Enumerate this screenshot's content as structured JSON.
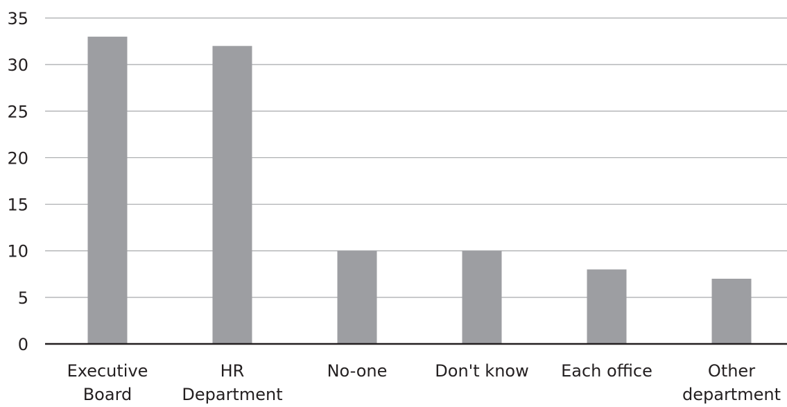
{
  "chart_data": {
    "type": "bar",
    "categories": [
      [
        "Executive",
        "Board"
      ],
      [
        "HR",
        "Department"
      ],
      [
        "No-one"
      ],
      [
        "Don't know"
      ],
      [
        "Each office"
      ],
      [
        "Other",
        "department"
      ]
    ],
    "values": [
      33,
      32,
      10,
      10,
      8,
      7
    ],
    "ylim": [
      0,
      35
    ],
    "yticks": [
      0,
      5,
      10,
      15,
      20,
      25,
      30,
      35
    ],
    "grid": true,
    "legend": "none",
    "colors": {
      "bar": "#9d9ea2",
      "grid": "#a7a9ac",
      "axis": "#231f20",
      "text": "#231f20"
    }
  }
}
